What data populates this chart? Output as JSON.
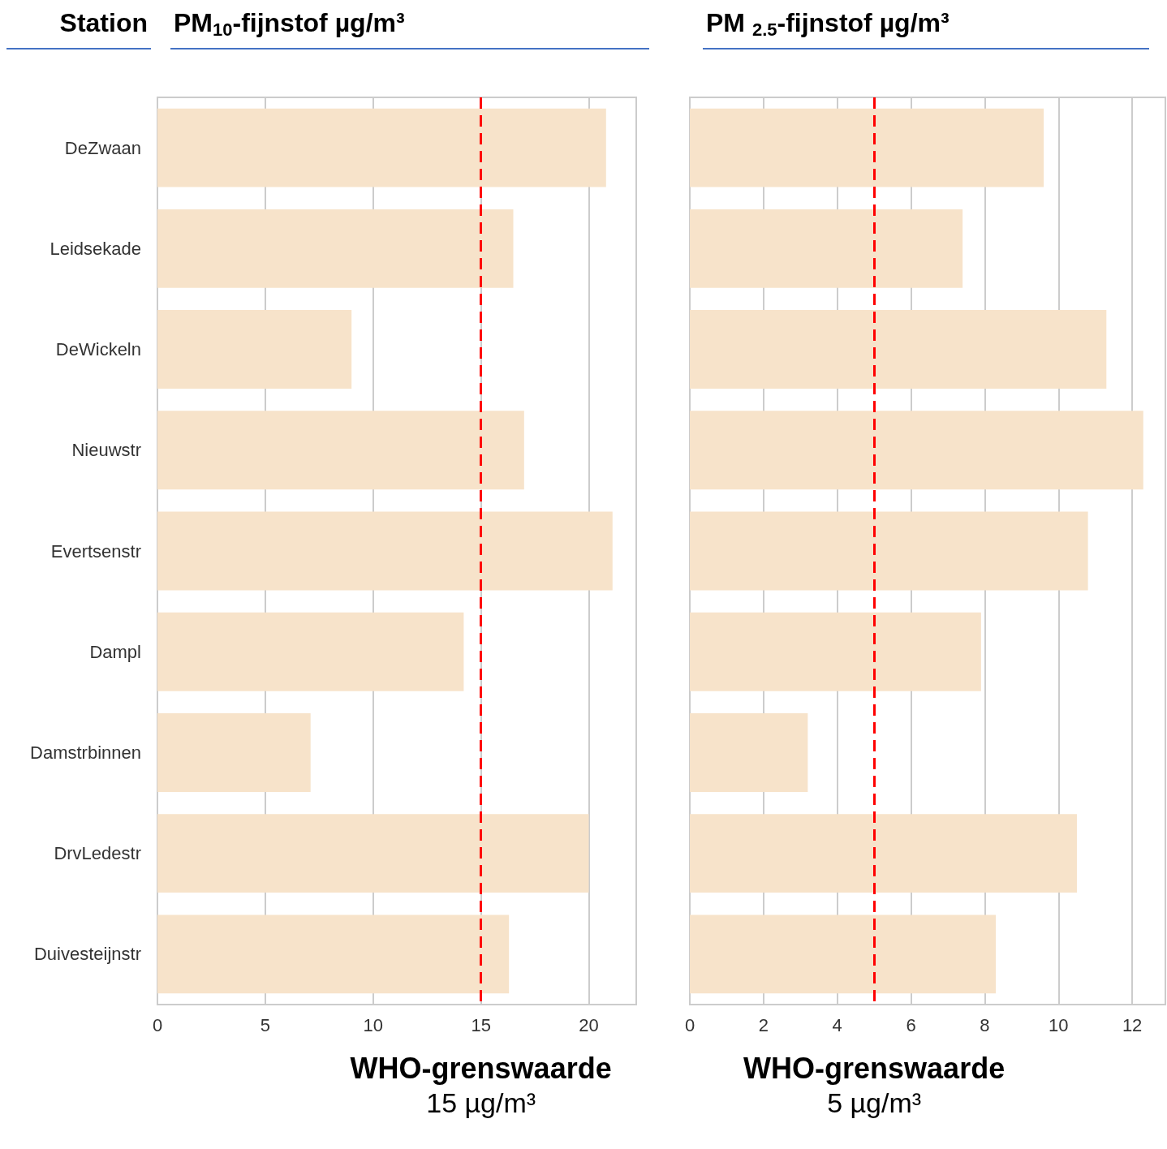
{
  "chart_data": [
    {
      "type": "bar",
      "orientation": "horizontal",
      "title": "PM$_{10}$-fijnstof µg/m³",
      "ylabel": "Station",
      "categories": [
        "DeZwaan",
        "Leidsekade",
        "DeWickeln",
        "Nieuwstr",
        "Evertsenstr",
        "Dampl",
        "Damstrbinnen",
        "DrvLedestr",
        "Duivesteijnstr"
      ],
      "values": [
        20.8,
        16.5,
        9.0,
        17.0,
        21.1,
        14.2,
        7.1,
        20.0,
        16.3
      ],
      "color": "#f7e3ca",
      "xlim": [
        0,
        22.2
      ],
      "xticks": [
        0,
        5,
        10,
        15,
        20
      ],
      "grid": "x",
      "ref_lines": [
        {
          "axis": "x",
          "value": 15,
          "label": "WHO-grenswaarde",
          "color": "#ff0000",
          "line_style": "dashed"
        }
      ],
      "annotations": [
        "15 µg/m³"
      ]
    },
    {
      "type": "bar",
      "orientation": "horizontal",
      "title": "PM $_{2.5}$-fijnstof µg/m³",
      "categories": [
        null,
        null,
        null,
        null,
        null,
        null,
        null,
        null,
        null
      ],
      "values": [
        9.6,
        7.4,
        11.3,
        12.3,
        10.8,
        7.9,
        3.2,
        10.5,
        8.3
      ],
      "color": "#f7e3ca",
      "xlim": [
        0,
        12.9
      ],
      "xticks": [
        0,
        2,
        4,
        6,
        8,
        10,
        12
      ],
      "grid": "x",
      "tick_labels": "x",
      "ref_lines": [
        {
          "axis": "x",
          "value": 5,
          "label": "WHO-grenswaarde",
          "color": "#ff0000",
          "line_style": "dashed"
        }
      ],
      "annotations": [
        "5 µg/m³"
      ]
    }
  ]
}
